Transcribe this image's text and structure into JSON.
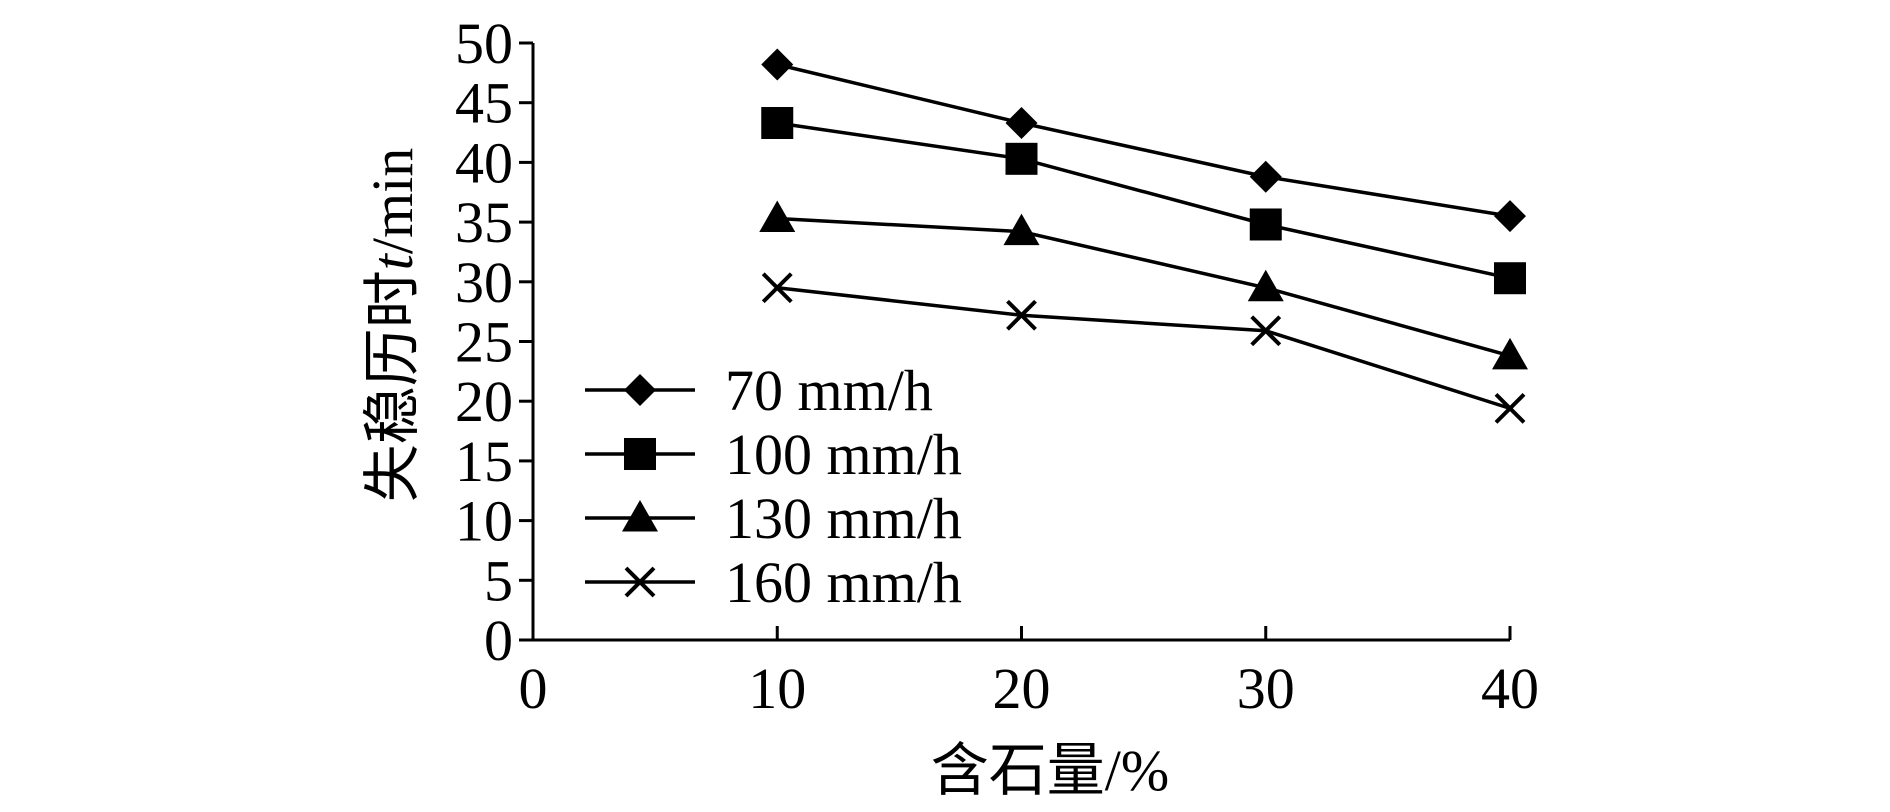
{
  "chart_data": {
    "type": "line",
    "x": [
      10,
      20,
      30,
      40
    ],
    "xlabel": "含石量/%",
    "ylabel_prefix": "失稳历时",
    "ylabel_var": "t",
    "ylabel_unit": "/min",
    "xlim": [
      0,
      40
    ],
    "ylim": [
      0,
      50
    ],
    "xticks": [
      0,
      10,
      20,
      30,
      40
    ],
    "yticks": [
      0,
      5,
      10,
      15,
      20,
      25,
      30,
      35,
      40,
      45,
      50
    ],
    "grid": false,
    "legend_position": "bottom-left",
    "series": [
      {
        "name": "70 mm/h",
        "marker": "diamond",
        "values": [
          48.2,
          43.3,
          38.8,
          35.5
        ]
      },
      {
        "name": "100 mm/h",
        "marker": "square",
        "values": [
          43.3,
          40.3,
          34.8,
          30.3
        ]
      },
      {
        "name": "130 mm/h",
        "marker": "triangle",
        "values": [
          35.3,
          34.2,
          29.5,
          23.8
        ]
      },
      {
        "name": "160 mm/h",
        "marker": "x",
        "values": [
          29.5,
          27.2,
          25.9,
          19.4
        ]
      }
    ],
    "color": "#000000"
  }
}
